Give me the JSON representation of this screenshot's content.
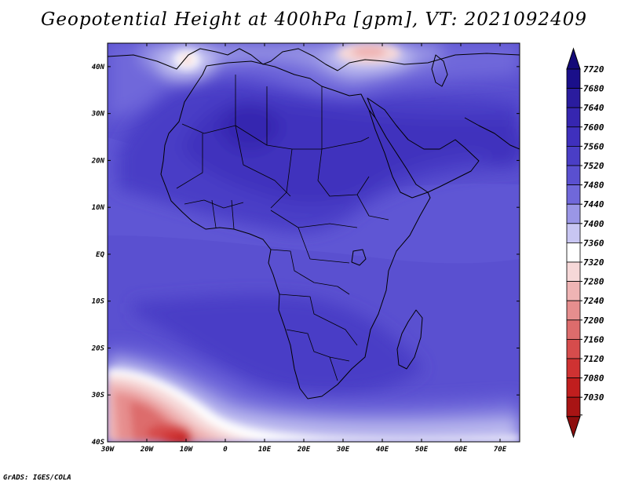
{
  "title": "Geopotential Height at 400hPa [gpm], VT: 2021092409",
  "credit": "GrADS: IGES/COLA",
  "map": {
    "lon_range": [
      -30,
      75
    ],
    "lat_range": [
      -40,
      45
    ],
    "lon_ticks": [
      {
        "value": -30,
        "label": "30W"
      },
      {
        "value": -20,
        "label": "20W"
      },
      {
        "value": -10,
        "label": "10W"
      },
      {
        "value": 0,
        "label": "0"
      },
      {
        "value": 10,
        "label": "10E"
      },
      {
        "value": 20,
        "label": "20E"
      },
      {
        "value": 30,
        "label": "30E"
      },
      {
        "value": 40,
        "label": "40E"
      },
      {
        "value": 50,
        "label": "50E"
      },
      {
        "value": 60,
        "label": "60E"
      },
      {
        "value": 70,
        "label": "70E"
      }
    ],
    "lat_ticks": [
      {
        "value": 40,
        "label": "40N"
      },
      {
        "value": 30,
        "label": "30N"
      },
      {
        "value": 20,
        "label": "20N"
      },
      {
        "value": 10,
        "label": "10N"
      },
      {
        "value": 0,
        "label": "EQ"
      },
      {
        "value": -10,
        "label": "10S"
      },
      {
        "value": -20,
        "label": "20S"
      },
      {
        "value": -30,
        "label": "30S"
      },
      {
        "value": -40,
        "label": "40S"
      }
    ]
  },
  "colorbar": {
    "levels": [
      {
        "label": "7720",
        "color": "#1a0f8a"
      },
      {
        "label": "7680",
        "color": "#2a1c9e"
      },
      {
        "label": "7640",
        "color": "#3626b0"
      },
      {
        "label": "7600",
        "color": "#3f30bd"
      },
      {
        "label": "7560",
        "color": "#4a3ec6"
      },
      {
        "label": "7520",
        "color": "#5a50d0"
      },
      {
        "label": "7480",
        "color": "#7068da"
      },
      {
        "label": "7440",
        "color": "#9a96e6"
      },
      {
        "label": "7400",
        "color": "#c8c6f2"
      },
      {
        "label": "7360",
        "color": "#ffffff"
      },
      {
        "label": "7320",
        "color": "#f6d8d8"
      },
      {
        "label": "7280",
        "color": "#efb4b4"
      },
      {
        "label": "7240",
        "color": "#e68e8e"
      },
      {
        "label": "7200",
        "color": "#dd6c6c"
      },
      {
        "label": "7160",
        "color": "#d64c4c"
      },
      {
        "label": "7120",
        "color": "#cf3232"
      },
      {
        "label": "7080",
        "color": "#c01e1e"
      },
      {
        "label": "7030",
        "color": "#a81414"
      }
    ],
    "top_color": "#140a78",
    "bottom_color": "#8e0e0e"
  }
}
